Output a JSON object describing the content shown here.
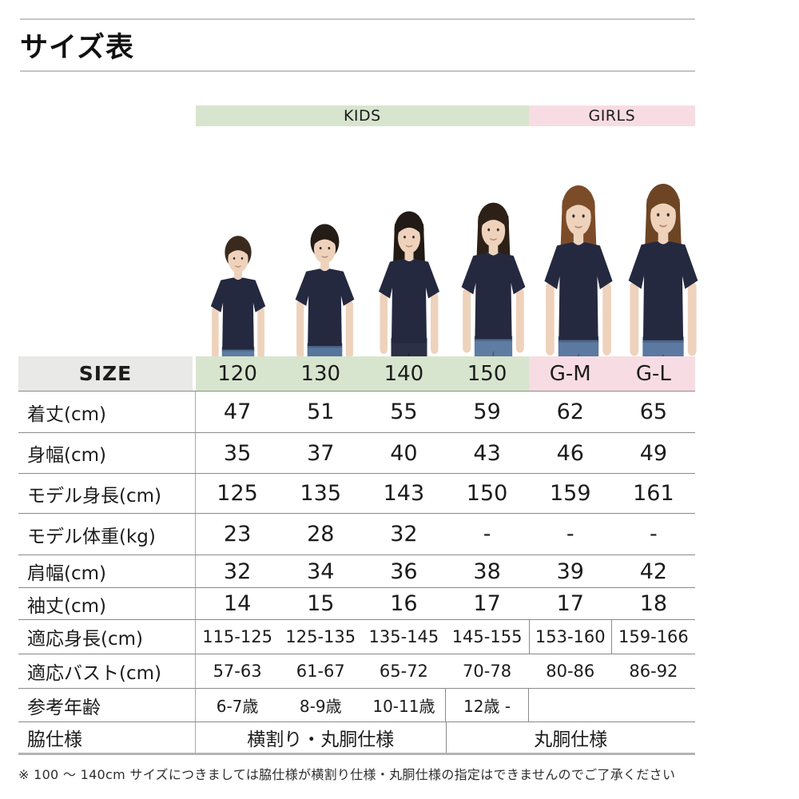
{
  "page": {
    "title": "サイズ表",
    "footnote": "※ 100 ～ 140cm サイズにつきましては脇仕様が横割り仕様・丸胴仕様の指定はできませんのでご了承ください"
  },
  "group_header": {
    "kids": "KIDS",
    "girls": "GIRLS"
  },
  "colors": {
    "kids_band": "#d7e5ce",
    "girls_band": "#f7dde3",
    "size_cell_bg": "#e9e9e7",
    "grid_line": "#8a8a8a",
    "shirt_navy": "#242940",
    "skin": "#eed2bc"
  },
  "table": {
    "size_label": "SIZE",
    "columns": [
      "120",
      "130",
      "140",
      "150",
      "G-M",
      "G-L"
    ],
    "rows": [
      {
        "label": "着丈(cm)",
        "values": [
          "47",
          "51",
          "55",
          "59",
          "62",
          "65"
        ]
      },
      {
        "label": "身幅(cm)",
        "values": [
          "35",
          "37",
          "40",
          "43",
          "46",
          "49"
        ]
      },
      {
        "label": "モデル身長(cm)",
        "values": [
          "125",
          "135",
          "143",
          "150",
          "159",
          "161"
        ]
      },
      {
        "label": "モデル体重(kg)",
        "values": [
          "23",
          "28",
          "32",
          "-",
          "-",
          "-"
        ]
      },
      {
        "label": "肩幅(cm)",
        "values": [
          "32",
          "34",
          "36",
          "38",
          "39",
          "42"
        ]
      },
      {
        "label": "袖丈(cm)",
        "values": [
          "14",
          "15",
          "16",
          "17",
          "17",
          "18"
        ]
      },
      {
        "label": "適応身長(cm)",
        "values": [
          "115-125",
          "125-135",
          "135-145",
          "145-155",
          "153-160",
          "159-166"
        ]
      },
      {
        "label": "適応バスト(cm)",
        "values": [
          "57-63",
          "61-67",
          "65-72",
          "70-78",
          "80-86",
          "86-92"
        ]
      },
      {
        "label": "参考年齢",
        "values": [
          "6-7歳",
          "8-9歳",
          "10-11歳",
          "12歳 -",
          "",
          ""
        ]
      }
    ],
    "spec_row": {
      "label": "脇仕様",
      "kids": "横割り・丸胴仕様",
      "girls": "丸胴仕様"
    }
  },
  "models": [
    {
      "name": "kid-120",
      "column": "120",
      "hair": "#3a2a1e",
      "pants": "#5f7ca3",
      "hair_style": "short"
    },
    {
      "name": "kid-130",
      "column": "130",
      "hair": "#241c16",
      "pants": "#57759d",
      "hair_style": "short"
    },
    {
      "name": "kid-140",
      "column": "140",
      "hair": "#221a15",
      "pants": "#2b3047",
      "hair_style": "long"
    },
    {
      "name": "kid-150",
      "column": "150",
      "hair": "#2d2117",
      "pants": "#5f7ca3",
      "hair_style": "long"
    },
    {
      "name": "girl-gm",
      "column": "G-M",
      "hair": "#7c4c29",
      "pants": "#5b79a1",
      "hair_style": "long"
    },
    {
      "name": "girl-gl",
      "column": "G-L",
      "hair": "#6e4524",
      "pants": "#5b79a1",
      "hair_style": "long"
    }
  ]
}
